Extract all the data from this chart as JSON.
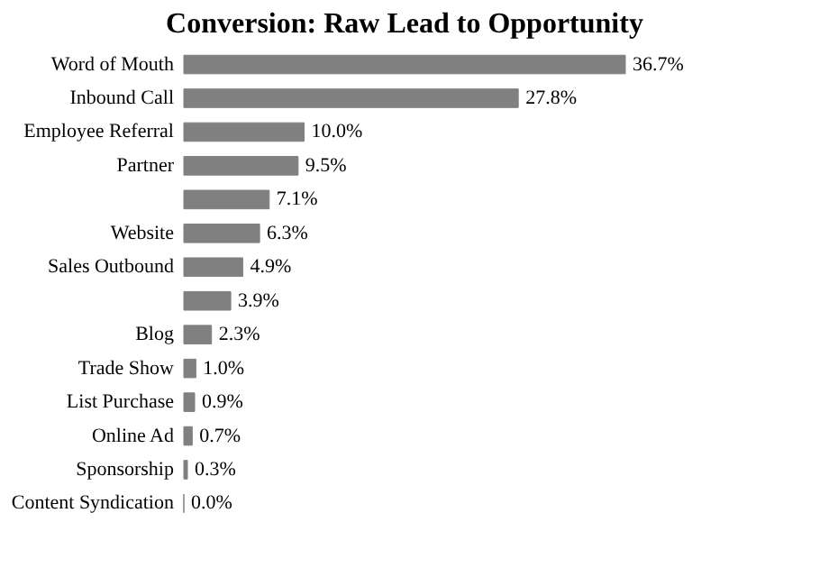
{
  "chart_data": {
    "type": "bar",
    "orientation": "horizontal",
    "title": "Conversion: Raw Lead to Opportunity",
    "categories": [
      "Word of Mouth",
      "Inbound Call",
      "Employee Referral",
      "Partner",
      null,
      "Website",
      "Sales Outbound",
      null,
      "Blog",
      "Trade Show",
      "List Purchase",
      "Online Ad",
      "Sponsorship",
      "Content Syndication"
    ],
    "values": [
      36.7,
      27.8,
      10.0,
      9.5,
      7.1,
      6.3,
      4.9,
      3.9,
      2.3,
      1.0,
      0.9,
      0.7,
      0.3,
      0.0
    ],
    "value_labels": [
      "36.7%",
      "27.8%",
      "10.0%",
      "9.5%",
      "7.1%",
      "6.3%",
      "4.9%",
      "3.9%",
      "2.3%",
      "1.0%",
      "0.9%",
      "0.7%",
      "0.3%",
      "0.0%"
    ],
    "color": "#808080"
  }
}
